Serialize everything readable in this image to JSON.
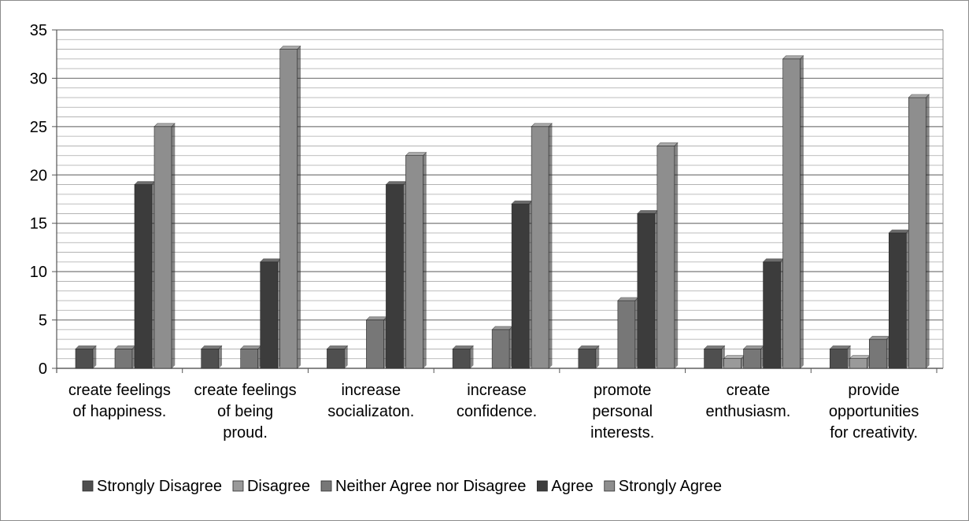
{
  "chart_data": {
    "type": "bar",
    "categories": [
      [
        "create feelings",
        "of happiness."
      ],
      [
        "create feelings",
        "of being",
        "proud."
      ],
      [
        "increase",
        "socializaton."
      ],
      [
        "increase",
        "confidence."
      ],
      [
        "promote",
        "personal",
        "interests."
      ],
      [
        "create",
        "enthusiasm."
      ],
      [
        "provide",
        "opportunities",
        "for creativity."
      ]
    ],
    "series": [
      {
        "name": "Strongly Disagree",
        "color": "#4f4f4f",
        "values": [
          2,
          2,
          2,
          2,
          2,
          2,
          2
        ]
      },
      {
        "name": "Disagree",
        "color": "#9a9a9a",
        "values": [
          0,
          0,
          0,
          0,
          0,
          1,
          1
        ]
      },
      {
        "name": "Neither Agree nor Disagree",
        "color": "#777777",
        "values": [
          2,
          2,
          5,
          4,
          7,
          2,
          3
        ]
      },
      {
        "name": "Agree",
        "color": "#3c3c3c",
        "values": [
          19,
          11,
          19,
          17,
          16,
          11,
          14
        ]
      },
      {
        "name": "Strongly Agree",
        "color": "#8e8e8e",
        "values": [
          25,
          33,
          22,
          25,
          23,
          32,
          28
        ]
      }
    ],
    "ylim": [
      0,
      35
    ],
    "yticks": [
      "0",
      "5",
      "10",
      "15",
      "20",
      "25",
      "30",
      "35"
    ],
    "grid": true,
    "legend_position": "bottom",
    "title": "",
    "xlabel": "",
    "ylabel": ""
  }
}
